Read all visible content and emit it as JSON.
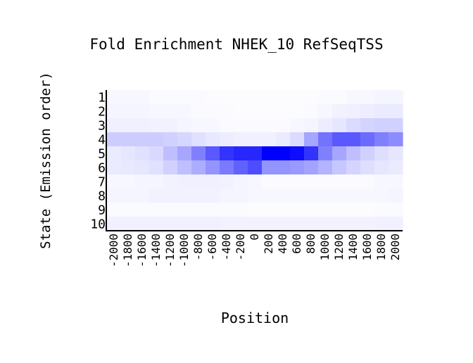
{
  "chart_data": {
    "type": "heatmap",
    "title": "Fold Enrichment NHEK_10 RefSeqTSS",
    "xlabel": "Position",
    "ylabel": "State (Emission order)",
    "x_categories": [
      "-2000",
      "-1800",
      "-1600",
      "-1400",
      "-1200",
      "-1000",
      "-800",
      "-600",
      "-400",
      "-200",
      "0",
      "200",
      "400",
      "600",
      "800",
      "1000",
      "1200",
      "1400",
      "1600",
      "1800",
      "2000"
    ],
    "y_categories": [
      "1",
      "2",
      "3",
      "4",
      "5",
      "6",
      "7",
      "8",
      "9",
      "10"
    ],
    "color_low": "#ffffff",
    "color_high": "#0000ff",
    "values": [
      [
        0.03,
        0.03,
        0.03,
        0.02,
        0.02,
        0.02,
        0.02,
        0.01,
        0.01,
        0.01,
        0.01,
        0.01,
        0.01,
        0.01,
        0.01,
        0.02,
        0.02,
        0.03,
        0.03,
        0.04,
        0.04
      ],
      [
        0.04,
        0.04,
        0.04,
        0.03,
        0.03,
        0.03,
        0.02,
        0.02,
        0.02,
        0.01,
        0.01,
        0.01,
        0.01,
        0.01,
        0.02,
        0.03,
        0.05,
        0.06,
        0.07,
        0.08,
        0.08
      ],
      [
        0.06,
        0.06,
        0.06,
        0.05,
        0.05,
        0.04,
        0.03,
        0.03,
        0.02,
        0.02,
        0.02,
        0.02,
        0.02,
        0.03,
        0.04,
        0.07,
        0.1,
        0.14,
        0.17,
        0.18,
        0.18
      ],
      [
        0.2,
        0.2,
        0.2,
        0.2,
        0.18,
        0.16,
        0.12,
        0.09,
        0.07,
        0.06,
        0.06,
        0.06,
        0.08,
        0.14,
        0.35,
        0.55,
        0.65,
        0.65,
        0.58,
        0.5,
        0.45
      ],
      [
        0.08,
        0.1,
        0.12,
        0.15,
        0.25,
        0.35,
        0.5,
        0.65,
        0.8,
        0.85,
        0.85,
        1.0,
        1.0,
        0.95,
        0.8,
        0.5,
        0.35,
        0.25,
        0.18,
        0.13,
        0.1
      ],
      [
        0.08,
        0.09,
        0.1,
        0.12,
        0.18,
        0.25,
        0.32,
        0.42,
        0.52,
        0.62,
        0.7,
        0.42,
        0.42,
        0.4,
        0.36,
        0.3,
        0.22,
        0.17,
        0.13,
        0.1,
        0.08
      ],
      [
        0.03,
        0.03,
        0.04,
        0.04,
        0.05,
        0.06,
        0.06,
        0.06,
        0.05,
        0.04,
        0.03,
        0.02,
        0.02,
        0.02,
        0.02,
        0.02,
        0.02,
        0.02,
        0.02,
        0.03,
        0.03
      ],
      [
        0.04,
        0.04,
        0.04,
        0.05,
        0.05,
        0.05,
        0.05,
        0.05,
        0.04,
        0.04,
        0.03,
        0.03,
        0.03,
        0.03,
        0.03,
        0.03,
        0.03,
        0.03,
        0.03,
        0.03,
        0.04
      ],
      [
        0.02,
        0.02,
        0.02,
        0.02,
        0.02,
        0.02,
        0.02,
        0.02,
        0.02,
        0.02,
        0.01,
        0.01,
        0.01,
        0.01,
        0.01,
        0.01,
        0.01,
        0.01,
        0.01,
        0.02,
        0.02
      ],
      [
        0.06,
        0.06,
        0.06,
        0.06,
        0.06,
        0.06,
        0.06,
        0.06,
        0.05,
        0.05,
        0.05,
        0.05,
        0.05,
        0.05,
        0.05,
        0.05,
        0.05,
        0.05,
        0.05,
        0.06,
        0.06
      ]
    ]
  }
}
